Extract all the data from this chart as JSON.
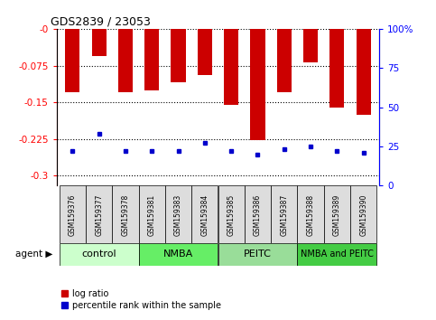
{
  "title": "GDS2839 / 23053",
  "samples": [
    "GSM159376",
    "GSM159377",
    "GSM159378",
    "GSM159381",
    "GSM159383",
    "GSM159384",
    "GSM159385",
    "GSM159386",
    "GSM159387",
    "GSM159388",
    "GSM159389",
    "GSM159390"
  ],
  "log_ratios": [
    -0.13,
    -0.055,
    -0.13,
    -0.125,
    -0.11,
    -0.095,
    -0.155,
    -0.228,
    -0.13,
    -0.068,
    -0.16,
    -0.175
  ],
  "percentile_ranks": [
    22,
    33,
    22,
    22,
    22,
    27,
    22,
    20,
    23,
    25,
    22,
    21
  ],
  "groups": [
    {
      "label": "control",
      "color": "#ccffcc",
      "start": 0,
      "end": 3
    },
    {
      "label": "NMBA",
      "color": "#66ee66",
      "start": 3,
      "end": 6
    },
    {
      "label": "PEITC",
      "color": "#99dd99",
      "start": 6,
      "end": 9
    },
    {
      "label": "NMBA and PEITC",
      "color": "#44cc44",
      "start": 9,
      "end": 12
    }
  ],
  "bar_color": "#cc0000",
  "dot_color": "#0000cc",
  "ylim_left": [
    -0.32,
    0.0
  ],
  "ylim_right": [
    0,
    100
  ],
  "yticks_left": [
    0.0,
    -0.075,
    -0.15,
    -0.225,
    -0.3
  ],
  "yticks_right": [
    0,
    25,
    50,
    75,
    100
  ],
  "ytick_labels_left": [
    "-0",
    "-0.075",
    "-0.15",
    "-0.225",
    "-0.3"
  ],
  "ytick_labels_right": [
    "0",
    "25",
    "50",
    "75",
    "100%"
  ],
  "bar_width": 0.55,
  "figure_width": 4.83,
  "figure_height": 3.54,
  "dpi": 100
}
